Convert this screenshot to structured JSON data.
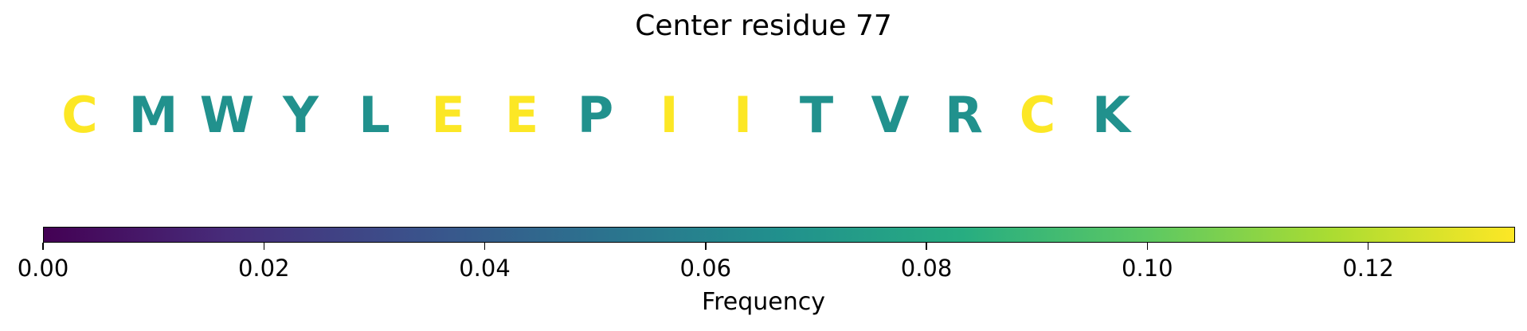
{
  "chart_data": {
    "type": "sequence-colormap",
    "title": "Center residue 77",
    "residues": [
      {
        "letter": "C",
        "frequency": 0.133
      },
      {
        "letter": "M",
        "frequency": 0.067
      },
      {
        "letter": "W",
        "frequency": 0.067
      },
      {
        "letter": "Y",
        "frequency": 0.067
      },
      {
        "letter": "L",
        "frequency": 0.067
      },
      {
        "letter": "E",
        "frequency": 0.133
      },
      {
        "letter": "E",
        "frequency": 0.133
      },
      {
        "letter": "P",
        "frequency": 0.067
      },
      {
        "letter": "I",
        "frequency": 0.133
      },
      {
        "letter": "I",
        "frequency": 0.133
      },
      {
        "letter": "T",
        "frequency": 0.067
      },
      {
        "letter": "V",
        "frequency": 0.067
      },
      {
        "letter": "R",
        "frequency": 0.067
      },
      {
        "letter": "C",
        "frequency": 0.133
      },
      {
        "letter": "K",
        "frequency": 0.067
      }
    ],
    "colorbar": {
      "label": "Frequency",
      "colormap": "viridis",
      "range": [
        0.0,
        0.1333
      ],
      "ticks": [
        0.0,
        0.02,
        0.04,
        0.06,
        0.08,
        0.1,
        0.12
      ],
      "tick_labels": [
        "0.00",
        "0.02",
        "0.04",
        "0.06",
        "0.08",
        "0.10",
        "0.12"
      ]
    }
  }
}
